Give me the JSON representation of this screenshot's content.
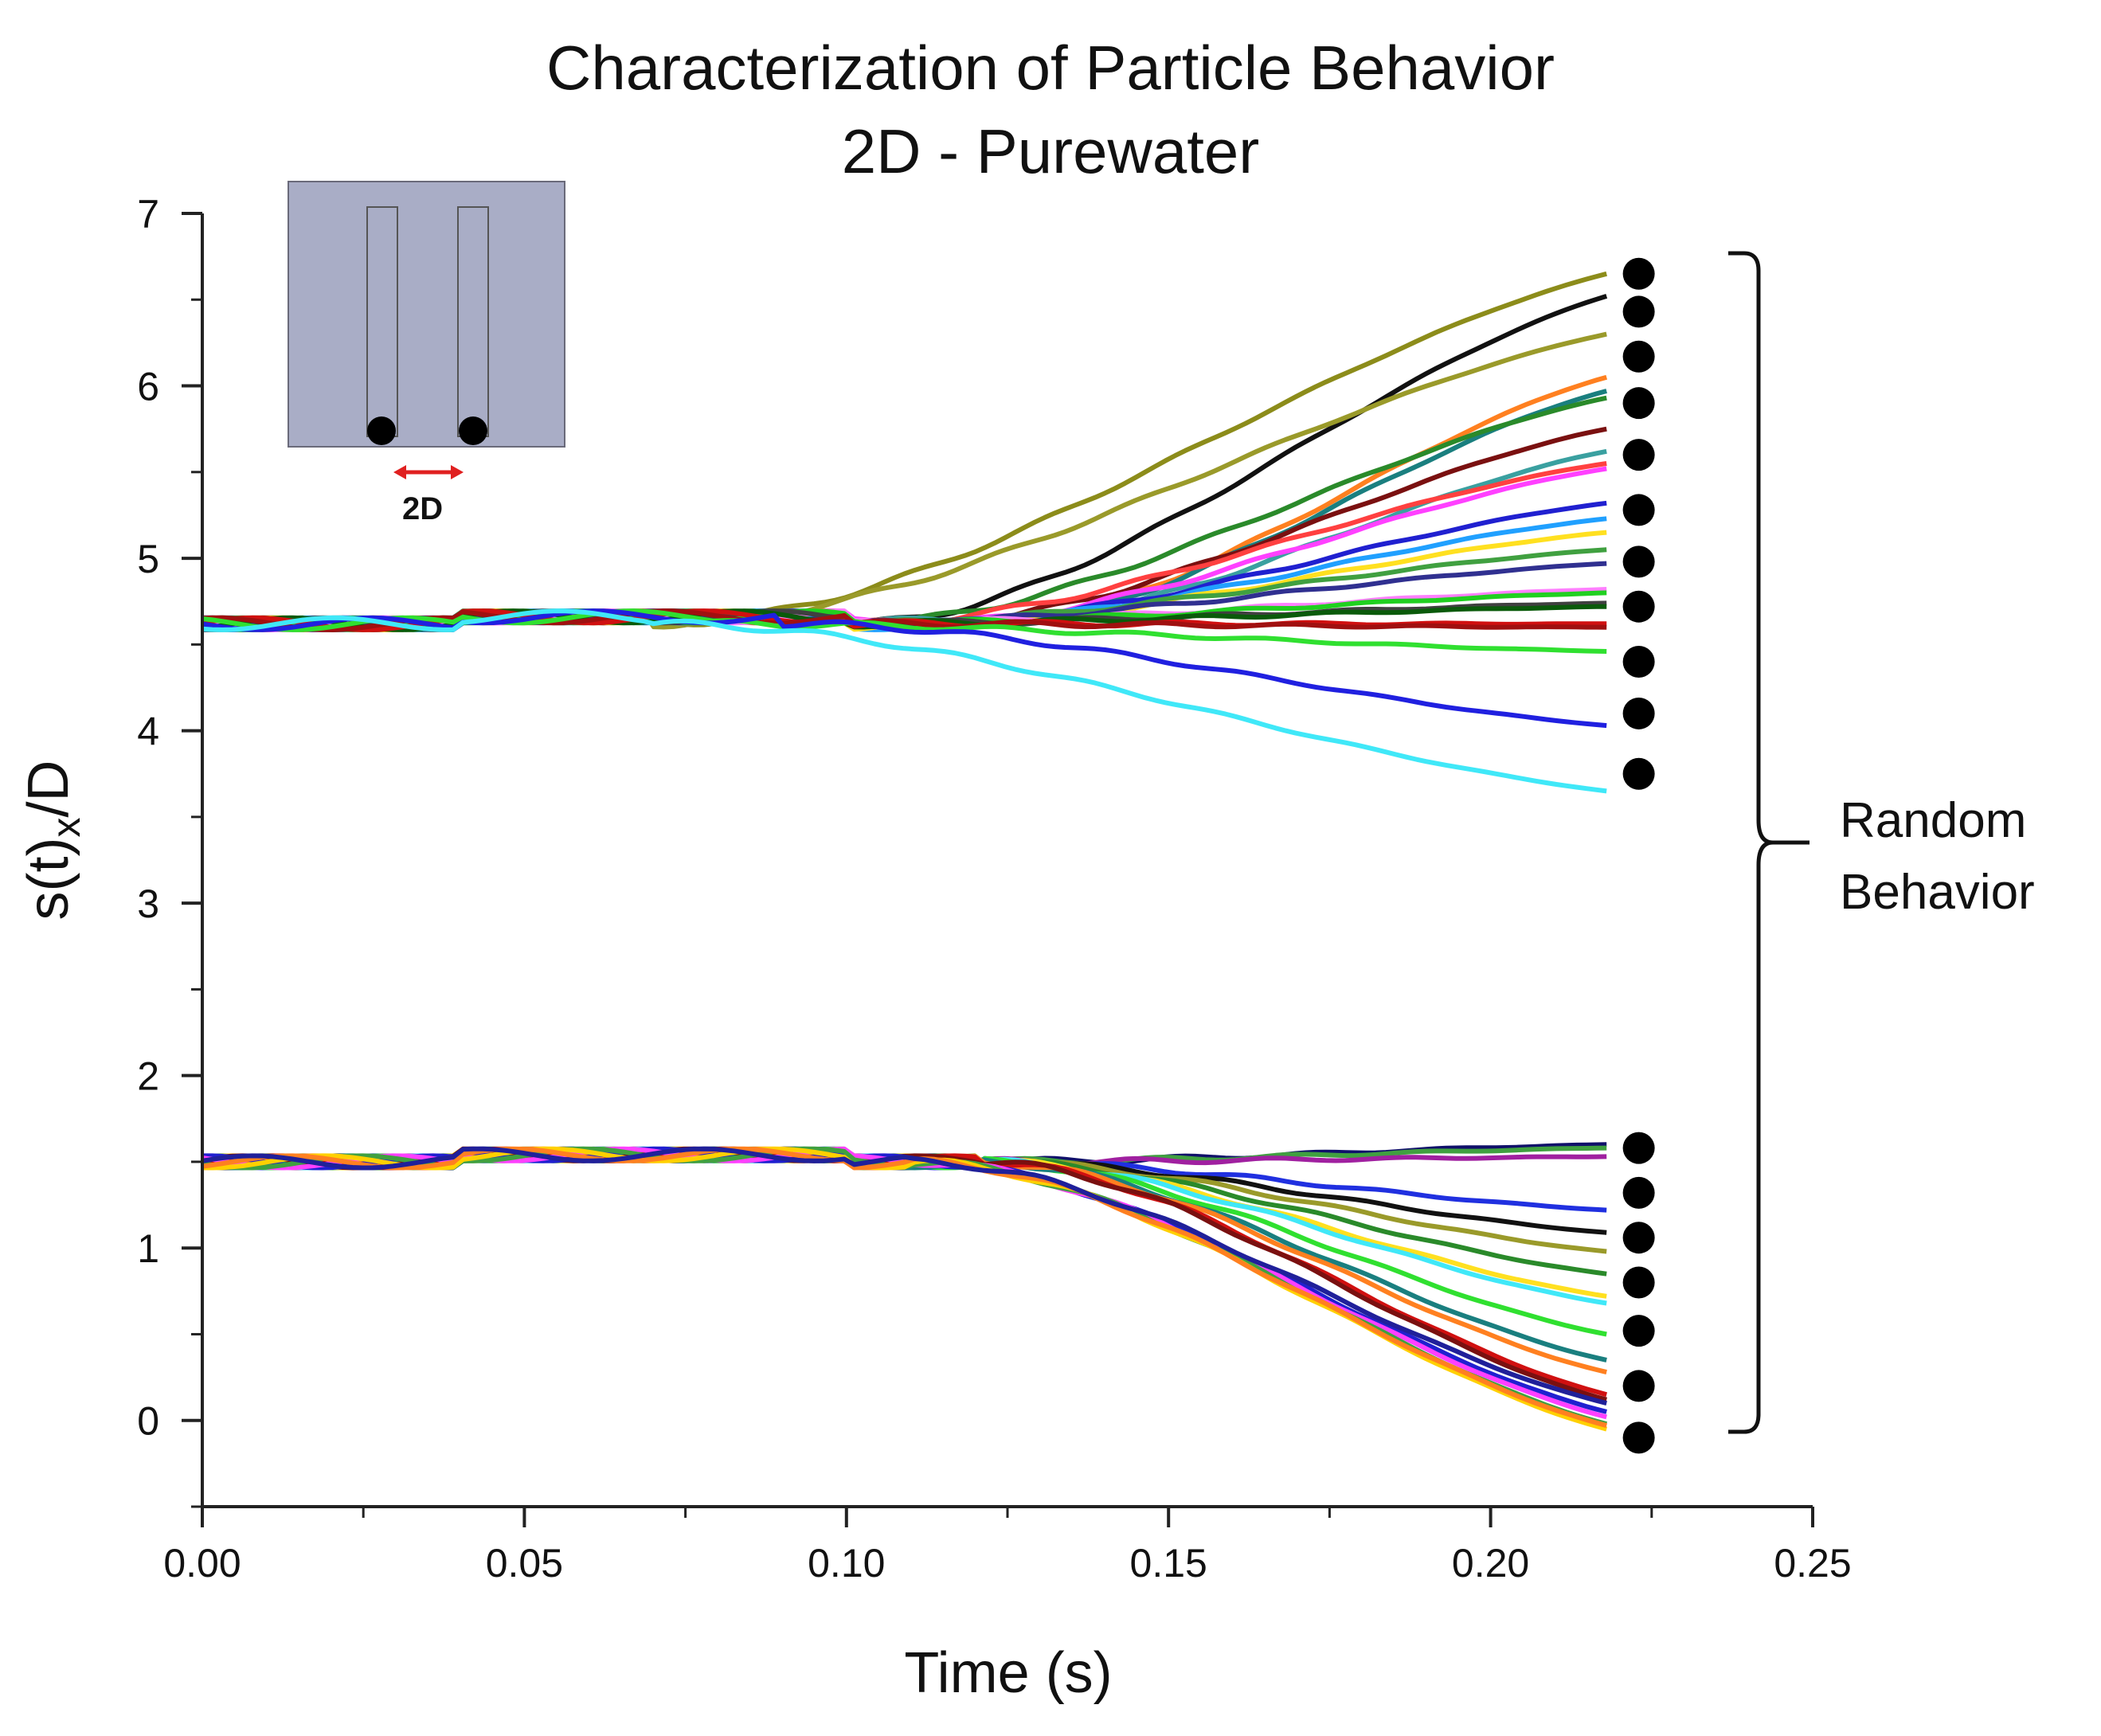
{
  "chart_data": {
    "type": "line",
    "title": "Characterization of Particle Behavior",
    "subtitle": "2D - Purewater",
    "xlabel": "Time (s)",
    "ylabel_main": "s(t)",
    "ylabel_sub": "x",
    "ylabel_tail": "/D",
    "xlim": [
      0.0,
      0.25
    ],
    "ylim": [
      -0.5,
      7
    ],
    "xticks": [
      "0.00",
      "0.05",
      "0.10",
      "0.15",
      "0.20",
      "0.25"
    ],
    "yticks": [
      "0",
      "1",
      "2",
      "3",
      "4",
      "5",
      "6",
      "7"
    ],
    "annotation": [
      "Random",
      "Behavior"
    ],
    "inset_label": "2D",
    "marker_x": 0.223,
    "markers": [
      6.65,
      6.43,
      6.17,
      5.9,
      5.6,
      5.28,
      4.98,
      4.72,
      4.4,
      4.1,
      3.75,
      1.58,
      1.32,
      1.06,
      0.8,
      0.52,
      0.2,
      -0.1
    ],
    "upper_group": {
      "base": 4.62,
      "series": [
        {
          "color": "#8c8c1a",
          "end": 6.65,
          "split": 0.07
        },
        {
          "color": "#111111",
          "end": 6.52,
          "split": 0.1
        },
        {
          "color": "#9a9a2a",
          "end": 6.3,
          "split": 0.07
        },
        {
          "color": "#ff8020",
          "end": 6.05,
          "split": 0.12
        },
        {
          "color": "#1a7f7f",
          "end": 5.97,
          "split": 0.12
        },
        {
          "color": "#2a8a2a",
          "end": 5.93,
          "split": 0.1
        },
        {
          "color": "#7a1010",
          "end": 5.75,
          "split": 0.11
        },
        {
          "color": "#3aa0a0",
          "end": 5.62,
          "split": 0.12
        },
        {
          "color": "#ff4040",
          "end": 5.55,
          "split": 0.1
        },
        {
          "color": "#ff40ff",
          "end": 5.52,
          "split": 0.11
        },
        {
          "color": "#2020d0",
          "end": 5.32,
          "split": 0.11
        },
        {
          "color": "#20a0ff",
          "end": 5.23,
          "split": 0.11
        },
        {
          "color": "#ffe020",
          "end": 5.15,
          "split": 0.11
        },
        {
          "color": "#40a040",
          "end": 5.05,
          "split": 0.1
        },
        {
          "color": "#303090",
          "end": 4.97,
          "split": 0.1
        },
        {
          "color": "#ff80ff",
          "end": 4.82,
          "split": 0.1
        },
        {
          "color": "#20d020",
          "end": 4.8,
          "split": 0.1
        },
        {
          "color": "#404040",
          "end": 4.74,
          "split": 0.1
        },
        {
          "color": "#0a5a0a",
          "end": 4.72,
          "split": 0.1
        },
        {
          "color": "#d01010",
          "end": 4.62,
          "split": 0.1
        },
        {
          "color": "#a01010",
          "end": 4.6,
          "split": 0.1
        },
        {
          "color": "#30e030",
          "end": 4.46,
          "split": 0.08
        },
        {
          "color": "#2020e0",
          "end": 4.03,
          "split": 0.09
        },
        {
          "color": "#40e8f8",
          "end": 3.65,
          "split": 0.07
        }
      ]
    },
    "lower_group": {
      "base": 1.5,
      "series": [
        {
          "color": "#10106a",
          "end": 1.6,
          "split": 0.12
        },
        {
          "color": "#40a040",
          "end": 1.58,
          "split": 0.12
        },
        {
          "color": "#a020a0",
          "end": 1.53,
          "split": 0.12
        },
        {
          "color": "#2030e0",
          "end": 1.22,
          "split": 0.12
        },
        {
          "color": "#111111",
          "end": 1.09,
          "split": 0.12
        },
        {
          "color": "#9a9a2a",
          "end": 0.98,
          "split": 0.12
        },
        {
          "color": "#2a8a2a",
          "end": 0.85,
          "split": 0.12
        },
        {
          "color": "#ffe020",
          "end": 0.72,
          "split": 0.12
        },
        {
          "color": "#40e8f8",
          "end": 0.68,
          "split": 0.12
        },
        {
          "color": "#30e030",
          "end": 0.5,
          "split": 0.12
        },
        {
          "color": "#1a7f7f",
          "end": 0.35,
          "split": 0.12
        },
        {
          "color": "#ff8020",
          "end": 0.28,
          "split": 0.12
        },
        {
          "color": "#d01010",
          "end": 0.15,
          "split": 0.12
        },
        {
          "color": "#7a1010",
          "end": 0.12,
          "split": 0.12
        },
        {
          "color": "#2020d0",
          "end": 0.05,
          "split": 0.11
        },
        {
          "color": "#ff40ff",
          "end": 0.02,
          "split": 0.11
        },
        {
          "color": "#40a040",
          "end": -0.02,
          "split": 0.11
        },
        {
          "color": "#ffd000",
          "end": -0.05,
          "split": 0.11
        },
        {
          "color": "#ff8020",
          "end": -0.03,
          "split": 0.11
        },
        {
          "color": "#20209a",
          "end": 0.1,
          "split": 0.11
        }
      ]
    }
  }
}
